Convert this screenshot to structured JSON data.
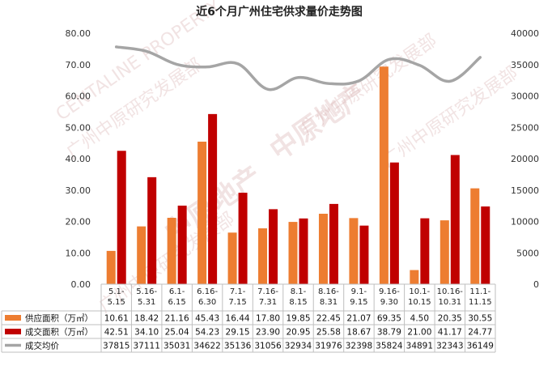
{
  "chart_data": {
    "type": "bar",
    "title": "近6个月广州住宅供求量价走势图",
    "categories": [
      "5.1-\n5.15",
      "5.16-\n5.31",
      "6.1-\n6.15",
      "6.16-\n6.30",
      "7.1-\n7.15",
      "7.16-\n7.31",
      "8.1-\n8.15",
      "8.16-\n8.31",
      "9.1-\n9.15",
      "9.16-\n9.30",
      "10.1-\n10.15",
      "10.16-\n10.31",
      "11.1-\n11.15"
    ],
    "series": [
      {
        "name": "供应面积（万㎡）",
        "type": "bar",
        "axis": "left",
        "color": "#ed7d31",
        "values": [
          10.61,
          18.42,
          21.16,
          45.43,
          16.44,
          17.8,
          19.85,
          22.45,
          21.07,
          69.35,
          4.5,
          20.35,
          30.55
        ],
        "labels": [
          "10.61",
          "18.42",
          "21.16",
          "45.43",
          "16.44",
          "17.80",
          "19.85",
          "22.45",
          "21.07",
          "69.35",
          "4.50",
          "20.35",
          "30.55"
        ]
      },
      {
        "name": "成交面积（万㎡）",
        "type": "bar",
        "axis": "left",
        "color": "#c00000",
        "values": [
          42.51,
          34.1,
          25.04,
          54.23,
          29.15,
          23.9,
          20.95,
          25.58,
          18.67,
          38.79,
          21.0,
          41.17,
          24.77
        ],
        "labels": [
          "42.51",
          "34.10",
          "25.04",
          "54.23",
          "29.15",
          "23.90",
          "20.95",
          "25.58",
          "18.67",
          "38.79",
          "21.00",
          "41.17",
          "24.77"
        ]
      },
      {
        "name": "成交均价",
        "type": "line",
        "axis": "right",
        "color": "#a5a5a5",
        "values": [
          37815,
          37111,
          35031,
          34622,
          35136,
          31056,
          32934,
          31976,
          32398,
          35824,
          34891,
          32343,
          36149
        ],
        "labels": [
          "37815",
          "37111",
          "35031",
          "34622",
          "35136",
          "31056",
          "32934",
          "31976",
          "32398",
          "35824",
          "34891",
          "32343",
          "36149"
        ]
      }
    ],
    "left_axis": {
      "min": 0,
      "max": 80,
      "ticks": [
        "0.00",
        "10.00",
        "20.00",
        "30.00",
        "40.00",
        "50.00",
        "60.00",
        "70.00",
        "80.00"
      ]
    },
    "right_axis": {
      "min": 0,
      "max": 40000,
      "ticks": [
        "0",
        "5000",
        "10000",
        "15000",
        "20000",
        "25000",
        "30000",
        "35000",
        "40000"
      ]
    },
    "grid": false,
    "legend": "data-table-below"
  },
  "watermarks": [
    "中原地产",
    "CENTALINE PROPERTY",
    "广州中原研究发展部"
  ]
}
